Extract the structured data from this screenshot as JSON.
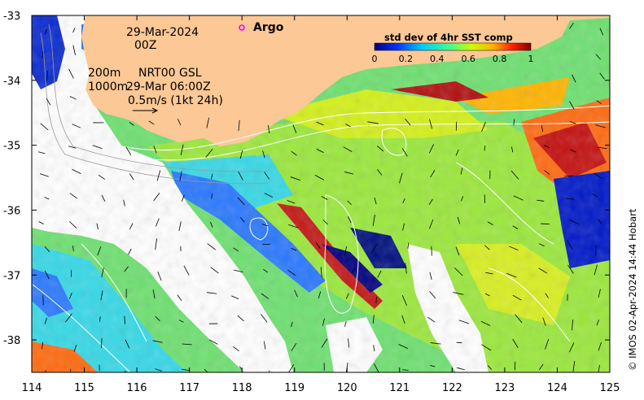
{
  "map": {
    "date_label": "29-Mar-2024",
    "hour_label": "00Z",
    "contour_label_200": "200m",
    "contour_label_1000": "1000m",
    "product_label": "NRT00 GSL",
    "product_time": "29-Mar 06:00Z",
    "arrow_scale_label": "0.5m/s (1kt 24h)",
    "argo_label": "Argo",
    "credit": "© IMOS 02-Apr-2024 14:44 Hobart"
  },
  "legend": {
    "title": "std dev of 4hr SST comp",
    "ticks": [
      "0",
      "0.2",
      "0.4",
      "0.6",
      "0.8",
      "1"
    ],
    "colors": [
      "#00007f",
      "#0030ff",
      "#00c8ff",
      "#40ff90",
      "#c8ff00",
      "#ffb000",
      "#ff2000",
      "#7f0000"
    ]
  },
  "axes": {
    "x_ticks": [
      "114",
      "115",
      "116",
      "117",
      "118",
      "119",
      "120",
      "121",
      "122",
      "123",
      "124",
      "125"
    ],
    "y_ticks": [
      "-33",
      "-34",
      "-35",
      "-36",
      "-37",
      "-38"
    ],
    "xlim": [
      114,
      125
    ],
    "ylim": [
      -38.5,
      -33
    ]
  },
  "colors": {
    "land": "#fbc896",
    "no_data": "#ffffff",
    "argo_marker": "#ff00ff"
  }
}
